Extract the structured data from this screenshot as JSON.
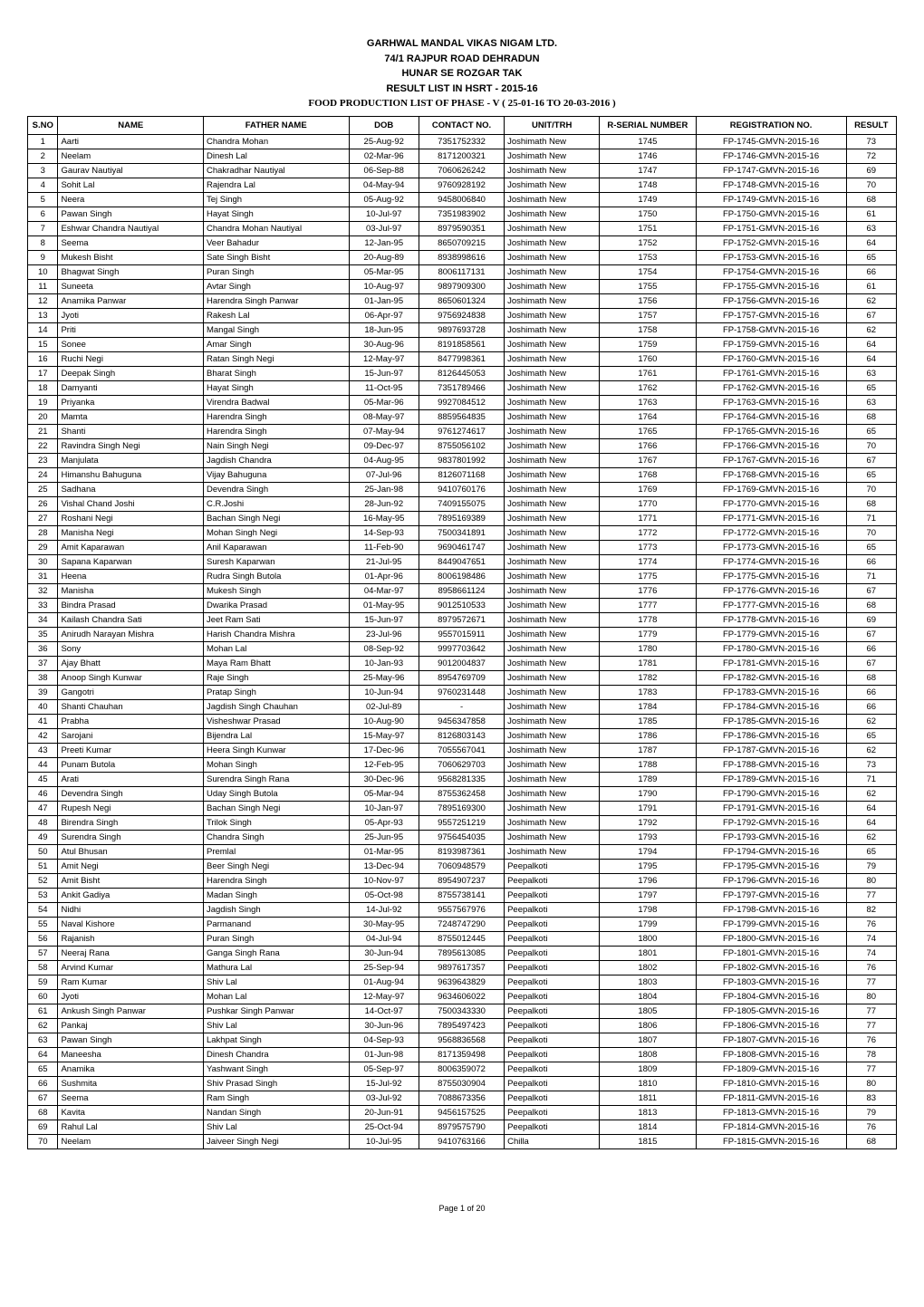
{
  "header": {
    "line1": "GARHWAL MANDAL VIKAS NIGAM LTD.",
    "line2": "74/1 RAJPUR ROAD DEHRADUN",
    "line3": "HUNAR SE ROZGAR TAK",
    "line4": "RESULT LIST IN HSRT - 2015-16",
    "subtitle": "FOOD PRODUCTION LIST OF PHASE - V ( 25-01-16 TO 20-03-2016 )"
  },
  "columns": [
    "S.NO",
    "NAME",
    "FATHER NAME",
    "DOB",
    "CONTACT NO.",
    "UNIT/TRH",
    "R-SERIAL NUMBER",
    "REGISTRATION NO.",
    "RESULT"
  ],
  "rows": [
    {
      "sno": "1",
      "name": "Aarti",
      "father": "Chandra Mohan",
      "dob": "25-Aug-92",
      "contact": "7351752332",
      "unit": "Joshimath New",
      "rserial": "1745",
      "reg": "FP-1745-GMVN-2015-16",
      "result": "73"
    },
    {
      "sno": "2",
      "name": "Neelam",
      "father": "Dinesh Lal",
      "dob": "02-Mar-96",
      "contact": "8171200321",
      "unit": "Joshimath New",
      "rserial": "1746",
      "reg": "FP-1746-GMVN-2015-16",
      "result": "72"
    },
    {
      "sno": "3",
      "name": "Gaurav Nautiyal",
      "father": "Chakradhar Nautiyal",
      "dob": "06-Sep-88",
      "contact": "7060626242",
      "unit": "Joshimath New",
      "rserial": "1747",
      "reg": "FP-1747-GMVN-2015-16",
      "result": "69"
    },
    {
      "sno": "4",
      "name": "Sohit Lal",
      "father": "Rajendra Lal",
      "dob": "04-May-94",
      "contact": "9760928192",
      "unit": "Joshimath New",
      "rserial": "1748",
      "reg": "FP-1748-GMVN-2015-16",
      "result": "70"
    },
    {
      "sno": "5",
      "name": "Neera",
      "father": "Tej Singh",
      "dob": "05-Aug-92",
      "contact": "9458006840",
      "unit": "Joshimath New",
      "rserial": "1749",
      "reg": "FP-1749-GMVN-2015-16",
      "result": "68"
    },
    {
      "sno": "6",
      "name": "Pawan Singh",
      "father": "Hayat Singh",
      "dob": "10-Jul-97",
      "contact": "7351983902",
      "unit": "Joshimath New",
      "rserial": "1750",
      "reg": "FP-1750-GMVN-2015-16",
      "result": "61"
    },
    {
      "sno": "7",
      "name": "Eshwar Chandra Nautiyal",
      "father": "Chandra Mohan Nautiyal",
      "dob": "03-Jul-97",
      "contact": "8979590351",
      "unit": "Joshimath New",
      "rserial": "1751",
      "reg": "FP-1751-GMVN-2015-16",
      "result": "63"
    },
    {
      "sno": "8",
      "name": "Seema",
      "father": "Veer Bahadur",
      "dob": "12-Jan-95",
      "contact": "8650709215",
      "unit": "Joshimath New",
      "rserial": "1752",
      "reg": "FP-1752-GMVN-2015-16",
      "result": "64"
    },
    {
      "sno": "9",
      "name": "Mukesh Bisht",
      "father": "Sate Singh Bisht",
      "dob": "20-Aug-89",
      "contact": "8938998616",
      "unit": "Joshimath New",
      "rserial": "1753",
      "reg": "FP-1753-GMVN-2015-16",
      "result": "65"
    },
    {
      "sno": "10",
      "name": "Bhagwat Singh",
      "father": "Puran Singh",
      "dob": "05-Mar-95",
      "contact": "8006117131",
      "unit": "Joshimath New",
      "rserial": "1754",
      "reg": "FP-1754-GMVN-2015-16",
      "result": "66"
    },
    {
      "sno": "11",
      "name": "Suneeta",
      "father": "Avtar Singh",
      "dob": "10-Aug-97",
      "contact": "9897909300",
      "unit": "Joshimath New",
      "rserial": "1755",
      "reg": "FP-1755-GMVN-2015-16",
      "result": "61"
    },
    {
      "sno": "12",
      "name": "Anamika Panwar",
      "father": "Harendra Singh Panwar",
      "dob": "01-Jan-95",
      "contact": "8650601324",
      "unit": "Joshimath New",
      "rserial": "1756",
      "reg": "FP-1756-GMVN-2015-16",
      "result": "62"
    },
    {
      "sno": "13",
      "name": "Jyoti",
      "father": "Rakesh Lal",
      "dob": "06-Apr-97",
      "contact": "9756924838",
      "unit": "Joshimath New",
      "rserial": "1757",
      "reg": "FP-1757-GMVN-2015-16",
      "result": "67"
    },
    {
      "sno": "14",
      "name": "Priti",
      "father": "Mangal Singh",
      "dob": "18-Jun-95",
      "contact": "9897693728",
      "unit": "Joshimath New",
      "rserial": "1758",
      "reg": "FP-1758-GMVN-2015-16",
      "result": "62"
    },
    {
      "sno": "15",
      "name": "Sonee",
      "father": "Amar Singh",
      "dob": "30-Aug-96",
      "contact": "8191858561",
      "unit": "Joshimath New",
      "rserial": "1759",
      "reg": "FP-1759-GMVN-2015-16",
      "result": "64"
    },
    {
      "sno": "16",
      "name": "Ruchi Negi",
      "father": "Ratan Singh Negi",
      "dob": "12-May-97",
      "contact": "8477998361",
      "unit": "Joshimath New",
      "rserial": "1760",
      "reg": "FP-1760-GMVN-2015-16",
      "result": "64"
    },
    {
      "sno": "17",
      "name": "Deepak Singh",
      "father": "Bharat Singh",
      "dob": "15-Jun-97",
      "contact": "8126445053",
      "unit": "Joshimath New",
      "rserial": "1761",
      "reg": "FP-1761-GMVN-2015-16",
      "result": "63"
    },
    {
      "sno": "18",
      "name": "Damyanti",
      "father": "Hayat Singh",
      "dob": "11-Oct-95",
      "contact": "7351789466",
      "unit": "Joshimath New",
      "rserial": "1762",
      "reg": "FP-1762-GMVN-2015-16",
      "result": "65"
    },
    {
      "sno": "19",
      "name": "Priyanka",
      "father": "Virendra Badwal",
      "dob": "05-Mar-96",
      "contact": "9927084512",
      "unit": "Joshimath New",
      "rserial": "1763",
      "reg": "FP-1763-GMVN-2015-16",
      "result": "63"
    },
    {
      "sno": "20",
      "name": "Mamta",
      "father": "Harendra Singh",
      "dob": "08-May-97",
      "contact": "8859564835",
      "unit": "Joshimath New",
      "rserial": "1764",
      "reg": "FP-1764-GMVN-2015-16",
      "result": "68"
    },
    {
      "sno": "21",
      "name": "Shanti",
      "father": "Harendra Singh",
      "dob": "07-May-94",
      "contact": "9761274617",
      "unit": "Joshimath New",
      "rserial": "1765",
      "reg": "FP-1765-GMVN-2015-16",
      "result": "65"
    },
    {
      "sno": "22",
      "name": "Ravindra Singh Negi",
      "father": "Nain Singh Negi",
      "dob": "09-Dec-97",
      "contact": "8755056102",
      "unit": "Joshimath New",
      "rserial": "1766",
      "reg": "FP-1766-GMVN-2015-16",
      "result": "70"
    },
    {
      "sno": "23",
      "name": "Manjulata",
      "father": "Jagdish Chandra",
      "dob": "04-Aug-95",
      "contact": "9837801992",
      "unit": "Joshimath New",
      "rserial": "1767",
      "reg": "FP-1767-GMVN-2015-16",
      "result": "67"
    },
    {
      "sno": "24",
      "name": "Himanshu Bahuguna",
      "father": "Vijay Bahuguna",
      "dob": "07-Jul-96",
      "contact": "8126071168",
      "unit": "Joshimath New",
      "rserial": "1768",
      "reg": "FP-1768-GMVN-2015-16",
      "result": "65"
    },
    {
      "sno": "25",
      "name": "Sadhana",
      "father": "Devendra Singh",
      "dob": "25-Jan-98",
      "contact": "9410760176",
      "unit": "Joshimath New",
      "rserial": "1769",
      "reg": "FP-1769-GMVN-2015-16",
      "result": "70"
    },
    {
      "sno": "26",
      "name": "Vishal Chand Joshi",
      "father": "C.R.Joshi",
      "dob": "28-Jun-92",
      "contact": "7409155075",
      "unit": "Joshimath New",
      "rserial": "1770",
      "reg": "FP-1770-GMVN-2015-16",
      "result": "68"
    },
    {
      "sno": "27",
      "name": "Roshani Negi",
      "father": "Bachan Singh Negi",
      "dob": "16-May-95",
      "contact": "7895169389",
      "unit": "Joshimath New",
      "rserial": "1771",
      "reg": "FP-1771-GMVN-2015-16",
      "result": "71"
    },
    {
      "sno": "28",
      "name": "Manisha Negi",
      "father": "Mohan Singh Negi",
      "dob": "14-Sep-93",
      "contact": "7500341891",
      "unit": "Joshimath New",
      "rserial": "1772",
      "reg": "FP-1772-GMVN-2015-16",
      "result": "70"
    },
    {
      "sno": "29",
      "name": "Amit Kaparawan",
      "father": "Anil Kaparawan",
      "dob": "11-Feb-90",
      "contact": "9690461747",
      "unit": "Joshimath New",
      "rserial": "1773",
      "reg": "FP-1773-GMVN-2015-16",
      "result": "65"
    },
    {
      "sno": "30",
      "name": "Sapana Kaparwan",
      "father": "Suresh Kaparwan",
      "dob": "21-Jul-95",
      "contact": "8449047651",
      "unit": "Joshimath New",
      "rserial": "1774",
      "reg": "FP-1774-GMVN-2015-16",
      "result": "66"
    },
    {
      "sno": "31",
      "name": "Heena",
      "father": "Rudra Singh Butola",
      "dob": "01-Apr-96",
      "contact": "8006198486",
      "unit": "Joshimath New",
      "rserial": "1775",
      "reg": "FP-1775-GMVN-2015-16",
      "result": "71"
    },
    {
      "sno": "32",
      "name": "Manisha",
      "father": "Mukesh Singh",
      "dob": "04-Mar-97",
      "contact": "8958661124",
      "unit": "Joshimath New",
      "rserial": "1776",
      "reg": "FP-1776-GMVN-2015-16",
      "result": "67"
    },
    {
      "sno": "33",
      "name": "Bindra Prasad",
      "father": "Dwarika Prasad",
      "dob": "01-May-95",
      "contact": "9012510533",
      "unit": "Joshimath New",
      "rserial": "1777",
      "reg": "FP-1777-GMVN-2015-16",
      "result": "68"
    },
    {
      "sno": "34",
      "name": "Kailash Chandra Sati",
      "father": "Jeet Ram Sati",
      "dob": "15-Jun-97",
      "contact": "8979572671",
      "unit": "Joshimath New",
      "rserial": "1778",
      "reg": "FP-1778-GMVN-2015-16",
      "result": "69"
    },
    {
      "sno": "35",
      "name": "Anirudh Narayan Mishra",
      "father": "Harish Chandra Mishra",
      "dob": "23-Jul-96",
      "contact": "9557015911",
      "unit": "Joshimath New",
      "rserial": "1779",
      "reg": "FP-1779-GMVN-2015-16",
      "result": "67"
    },
    {
      "sno": "36",
      "name": "Sony",
      "father": "Mohan Lal",
      "dob": "08-Sep-92",
      "contact": "9997703642",
      "unit": "Joshimath New",
      "rserial": "1780",
      "reg": "FP-1780-GMVN-2015-16",
      "result": "66"
    },
    {
      "sno": "37",
      "name": "Ajay Bhatt",
      "father": "Maya Ram Bhatt",
      "dob": "10-Jan-93",
      "contact": "9012004837",
      "unit": "Joshimath New",
      "rserial": "1781",
      "reg": "FP-1781-GMVN-2015-16",
      "result": "67"
    },
    {
      "sno": "38",
      "name": "Anoop Singh Kunwar",
      "father": "Raje Singh",
      "dob": "25-May-96",
      "contact": "8954769709",
      "unit": "Joshimath New",
      "rserial": "1782",
      "reg": "FP-1782-GMVN-2015-16",
      "result": "68"
    },
    {
      "sno": "39",
      "name": "Gangotri",
      "father": "Pratap Singh",
      "dob": "10-Jun-94",
      "contact": "9760231448",
      "unit": "Joshimath New",
      "rserial": "1783",
      "reg": "FP-1783-GMVN-2015-16",
      "result": "66"
    },
    {
      "sno": "40",
      "name": "Shanti Chauhan",
      "father": "Jagdish Singh Chauhan",
      "dob": "02-Jul-89",
      "contact": "-",
      "unit": "Joshimath New",
      "rserial": "1784",
      "reg": "FP-1784-GMVN-2015-16",
      "result": "66"
    },
    {
      "sno": "41",
      "name": "Prabha",
      "father": "Visheshwar Prasad",
      "dob": "10-Aug-90",
      "contact": "9456347858",
      "unit": "Joshimath New",
      "rserial": "1785",
      "reg": "FP-1785-GMVN-2015-16",
      "result": "62"
    },
    {
      "sno": "42",
      "name": "Sarojani",
      "father": "Bijendra Lal",
      "dob": "15-May-97",
      "contact": "8126803143",
      "unit": "Joshimath New",
      "rserial": "1786",
      "reg": "FP-1786-GMVN-2015-16",
      "result": "65"
    },
    {
      "sno": "43",
      "name": "Preeti Kumar",
      "father": "Heera Singh Kunwar",
      "dob": "17-Dec-96",
      "contact": "7055567041",
      "unit": "Joshimath New",
      "rserial": "1787",
      "reg": "FP-1787-GMVN-2015-16",
      "result": "62"
    },
    {
      "sno": "44",
      "name": "Punam Butola",
      "father": "Mohan Singh",
      "dob": "12-Feb-95",
      "contact": "7060629703",
      "unit": "Joshimath New",
      "rserial": "1788",
      "reg": "FP-1788-GMVN-2015-16",
      "result": "73"
    },
    {
      "sno": "45",
      "name": "Arati",
      "father": "Surendra Singh Rana",
      "dob": "30-Dec-96",
      "contact": "9568281335",
      "unit": "Joshimath New",
      "rserial": "1789",
      "reg": "FP-1789-GMVN-2015-16",
      "result": "71"
    },
    {
      "sno": "46",
      "name": "Devendra Singh",
      "father": "Uday Singh Butola",
      "dob": "05-Mar-94",
      "contact": "8755362458",
      "unit": "Joshimath New",
      "rserial": "1790",
      "reg": "FP-1790-GMVN-2015-16",
      "result": "62"
    },
    {
      "sno": "47",
      "name": "Rupesh Negi",
      "father": "Bachan Singh Negi",
      "dob": "10-Jan-97",
      "contact": "7895169300",
      "unit": "Joshimath New",
      "rserial": "1791",
      "reg": "FP-1791-GMVN-2015-16",
      "result": "64"
    },
    {
      "sno": "48",
      "name": "Birendra Singh",
      "father": "Trilok Singh",
      "dob": "05-Apr-93",
      "contact": "9557251219",
      "unit": "Joshimath New",
      "rserial": "1792",
      "reg": "FP-1792-GMVN-2015-16",
      "result": "64"
    },
    {
      "sno": "49",
      "name": "Surendra Singh",
      "father": "Chandra Singh",
      "dob": "25-Jun-95",
      "contact": "9756454035",
      "unit": "Joshimath New",
      "rserial": "1793",
      "reg": "FP-1793-GMVN-2015-16",
      "result": "62"
    },
    {
      "sno": "50",
      "name": "Atul Bhusan",
      "father": "Premlal",
      "dob": "01-Mar-95",
      "contact": "8193987361",
      "unit": "Joshimath New",
      "rserial": "1794",
      "reg": "FP-1794-GMVN-2015-16",
      "result": "65"
    },
    {
      "sno": "51",
      "name": "Amit Negi",
      "father": "Beer Singh Negi",
      "dob": "13-Dec-94",
      "contact": "7060948579",
      "unit": "Peepalkoti",
      "rserial": "1795",
      "reg": "FP-1795-GMVN-2015-16",
      "result": "79"
    },
    {
      "sno": "52",
      "name": "Amit Bisht",
      "father": "Harendra Singh",
      "dob": "10-Nov-97",
      "contact": "8954907237",
      "unit": "Peepalkoti",
      "rserial": "1796",
      "reg": "FP-1796-GMVN-2015-16",
      "result": "80"
    },
    {
      "sno": "53",
      "name": "Ankit Gadiya",
      "father": "Madan Singh",
      "dob": "05-Oct-98",
      "contact": "8755738141",
      "unit": "Peepalkoti",
      "rserial": "1797",
      "reg": "FP-1797-GMVN-2015-16",
      "result": "77"
    },
    {
      "sno": "54",
      "name": "Nidhi",
      "father": "Jagdish Singh",
      "dob": "14-Jul-92",
      "contact": "9557567976",
      "unit": "Peepalkoti",
      "rserial": "1798",
      "reg": "FP-1798-GMVN-2015-16",
      "result": "82"
    },
    {
      "sno": "55",
      "name": "Naval Kishore",
      "father": "Parmanand",
      "dob": "30-May-95",
      "contact": "7248747290",
      "unit": "Peepalkoti",
      "rserial": "1799",
      "reg": "FP-1799-GMVN-2015-16",
      "result": "76"
    },
    {
      "sno": "56",
      "name": "Rajanish",
      "father": "Puran Singh",
      "dob": "04-Jul-94",
      "contact": "8755012445",
      "unit": "Peepalkoti",
      "rserial": "1800",
      "reg": "FP-1800-GMVN-2015-16",
      "result": "74"
    },
    {
      "sno": "57",
      "name": "Neeraj Rana",
      "father": "Ganga Singh Rana",
      "dob": "30-Jun-94",
      "contact": "7895613085",
      "unit": "Peepalkoti",
      "rserial": "1801",
      "reg": "FP-1801-GMVN-2015-16",
      "result": "74"
    },
    {
      "sno": "58",
      "name": "Arvind Kumar",
      "father": "Mathura Lal",
      "dob": "25-Sep-94",
      "contact": "9897617357",
      "unit": "Peepalkoti",
      "rserial": "1802",
      "reg": "FP-1802-GMVN-2015-16",
      "result": "76"
    },
    {
      "sno": "59",
      "name": "Ram Kumar",
      "father": "Shiv Lal",
      "dob": "01-Aug-94",
      "contact": "9639643829",
      "unit": "Peepalkoti",
      "rserial": "1803",
      "reg": "FP-1803-GMVN-2015-16",
      "result": "77"
    },
    {
      "sno": "60",
      "name": "Jyoti",
      "father": "Mohan Lal",
      "dob": "12-May-97",
      "contact": "9634606022",
      "unit": "Peepalkoti",
      "rserial": "1804",
      "reg": "FP-1804-GMVN-2015-16",
      "result": "80"
    },
    {
      "sno": "61",
      "name": "Ankush Singh Panwar",
      "father": "Pushkar Singh Panwar",
      "dob": "14-Oct-97",
      "contact": "7500343330",
      "unit": "Peepalkoti",
      "rserial": "1805",
      "reg": "FP-1805-GMVN-2015-16",
      "result": "77"
    },
    {
      "sno": "62",
      "name": "Pankaj",
      "father": "Shiv Lal",
      "dob": "30-Jun-96",
      "contact": "7895497423",
      "unit": "Peepalkoti",
      "rserial": "1806",
      "reg": "FP-1806-GMVN-2015-16",
      "result": "77"
    },
    {
      "sno": "63",
      "name": "Pawan Singh",
      "father": "Lakhpat Singh",
      "dob": "04-Sep-93",
      "contact": "9568836568",
      "unit": "Peepalkoti",
      "rserial": "1807",
      "reg": "FP-1807-GMVN-2015-16",
      "result": "76"
    },
    {
      "sno": "64",
      "name": "Maneesha",
      "father": "Dinesh Chandra",
      "dob": "01-Jun-98",
      "contact": "8171359498",
      "unit": "Peepalkoti",
      "rserial": "1808",
      "reg": "FP-1808-GMVN-2015-16",
      "result": "78"
    },
    {
      "sno": "65",
      "name": "Anamika",
      "father": "Yashwant Singh",
      "dob": "05-Sep-97",
      "contact": "8006359072",
      "unit": "Peepalkoti",
      "rserial": "1809",
      "reg": "FP-1809-GMVN-2015-16",
      "result": "77"
    },
    {
      "sno": "66",
      "name": "Sushmita",
      "father": "Shiv Prasad Singh",
      "dob": "15-Jul-92",
      "contact": "8755030904",
      "unit": "Peepalkoti",
      "rserial": "1810",
      "reg": "FP-1810-GMVN-2015-16",
      "result": "80"
    },
    {
      "sno": "67",
      "name": "Seema",
      "father": "Ram Singh",
      "dob": "03-Jul-92",
      "contact": "7088673356",
      "unit": "Peepalkoti",
      "rserial": "1811",
      "reg": "FP-1811-GMVN-2015-16",
      "result": "83"
    },
    {
      "sno": "68",
      "name": "Kavita",
      "father": "Nandan Singh",
      "dob": "20-Jun-91",
      "contact": "9456157525",
      "unit": "Peepalkoti",
      "rserial": "1813",
      "reg": "FP-1813-GMVN-2015-16",
      "result": "79"
    },
    {
      "sno": "69",
      "name": "Rahul Lal",
      "father": "Shiv Lal",
      "dob": "25-Oct-94",
      "contact": "8979575790",
      "unit": "Peepalkoti",
      "rserial": "1814",
      "reg": "FP-1814-GMVN-2015-16",
      "result": "76"
    },
    {
      "sno": "70",
      "name": "Neelam",
      "father": "Jaiveer Singh Negi",
      "dob": "10-Jul-95",
      "contact": "9410763166",
      "unit": "Chilla",
      "rserial": "1815",
      "reg": "FP-1815-GMVN-2015-16",
      "result": "68"
    }
  ],
  "footer": "Page 1 of 20"
}
